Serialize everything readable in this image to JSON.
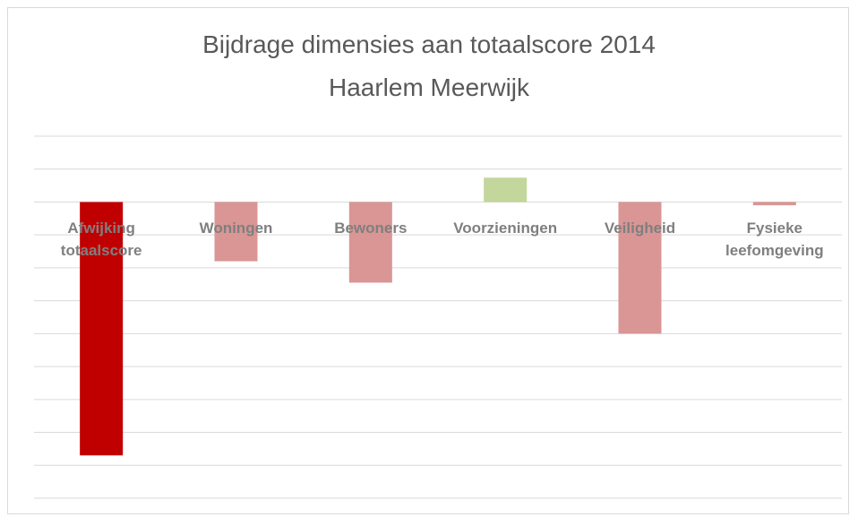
{
  "chart_data": {
    "type": "bar",
    "title": "Bijdrage dimensies aan totaalscore 2014",
    "subtitle": "Haarlem Meerwijk",
    "categories": [
      "Afwijking totaalscore",
      "Woningen",
      "Bewoners",
      "Voorzieningen",
      "Veiligheid",
      "Fysieke leefomgeving"
    ],
    "values": [
      -7.7,
      -1.8,
      -2.45,
      0.74,
      -4.0,
      -0.1
    ],
    "colors": [
      "#c00000",
      "#d99694",
      "#d99694",
      "#c3d69b",
      "#d99694",
      "#d99694"
    ],
    "ylim": [
      -9,
      2
    ],
    "yticks": [
      -9,
      -8,
      -7,
      -6,
      -5,
      -4,
      -3,
      -2,
      -1,
      0,
      1,
      2
    ],
    "grid": true
  }
}
